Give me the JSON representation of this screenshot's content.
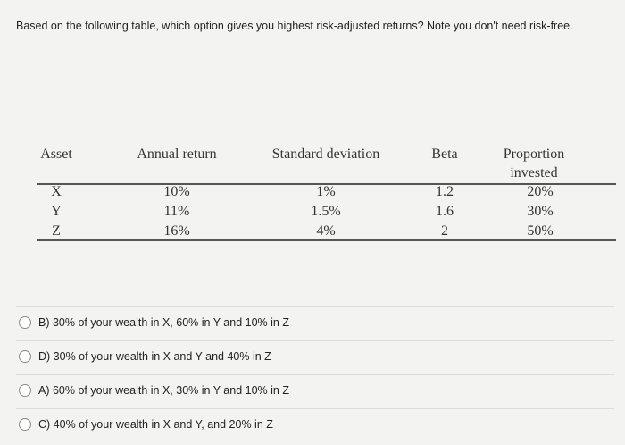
{
  "question": "Based on the following table, which option gives you highest risk-adjusted returns? Note you don't need risk-free.",
  "table": {
    "headers": [
      "Asset",
      "Annual return",
      "Standard deviation",
      "Beta",
      "Proportion invested"
    ],
    "rows": [
      [
        "X",
        "10%",
        "1%",
        "1.2",
        "20%"
      ],
      [
        "Y",
        "11%",
        "1.5%",
        "1.6",
        "30%"
      ],
      [
        "Z",
        "16%",
        "4%",
        "2",
        "50%"
      ]
    ]
  },
  "options": [
    "B) 30% of your wealth in X, 60% in Y and 10% in Z",
    "D) 30% of your wealth in X and Y and 40% in Z",
    "A) 60% of your wealth in X, 30% in Y and 10% in Z",
    "C) 40% of your wealth in X and Y, and 20% in Z"
  ]
}
